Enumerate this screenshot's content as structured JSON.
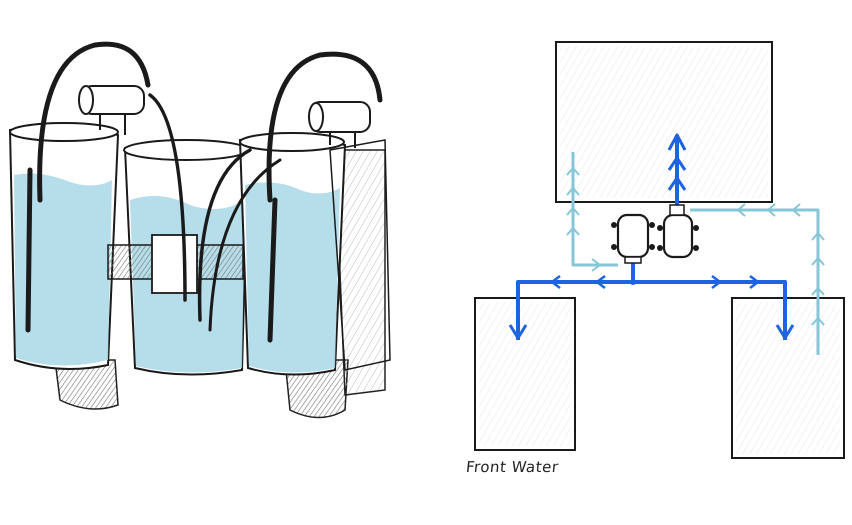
{
  "caption": "Front Water",
  "colors": {
    "ink": "#1a1a1a",
    "water": "#a9d7e6",
    "dark_flow": "#1e63e0",
    "light_flow": "#86c6d6",
    "shade": "#9a9a9a"
  },
  "icons": {
    "pump_left": "pump-icon",
    "pump_right": "pump-icon"
  }
}
